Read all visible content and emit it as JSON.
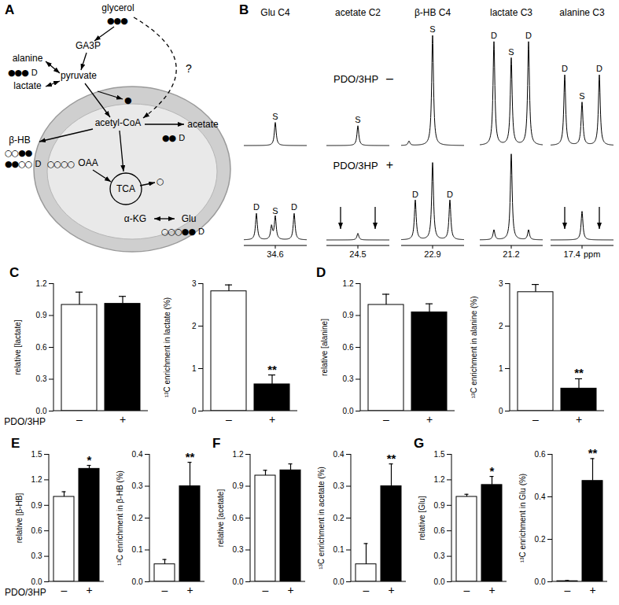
{
  "diagram": {
    "panel": "A",
    "nodes": [
      "glycerol",
      "GA3P",
      "pyruvate",
      "alanine",
      "lactate",
      "acetyl-CoA",
      "acetate",
      "β-HB",
      "OAA",
      "TCA",
      "α-KG",
      "Glu"
    ],
    "unknown_route": "?",
    "isotopomers": [
      {
        "circles": "●●●"
      },
      {
        "circles": "●●●",
        "label": "D"
      },
      {
        "circles": "●"
      },
      {
        "circles": "●●",
        "label": "D"
      },
      {
        "circles": "○○●●"
      },
      {
        "circles": "●●○○",
        "label": "D"
      },
      {
        "circles": "○○○○"
      },
      {
        "circles": "○"
      },
      {
        "circles": "○○○●●",
        "label": "D"
      }
    ]
  },
  "spectra": {
    "panel": "B",
    "condition": "PDO/3HP",
    "unit": "ppm",
    "compounds": [
      {
        "name": "Glu C4",
        "ppm": "34.6"
      },
      {
        "name": "acetate C2",
        "ppm": "24.5"
      },
      {
        "name": "β-HB C4",
        "ppm": "22.9"
      },
      {
        "name": "lactate C3",
        "ppm": "21.2"
      },
      {
        "name": "alanine C3",
        "ppm": "17.4"
      }
    ],
    "rows": [
      {
        "sign": "–",
        "segments": [
          {
            "peaks": [
              {
                "offset": 0,
                "height": 0.21,
                "label": "S"
              }
            ],
            "arrows": []
          },
          {
            "peaks": [
              {
                "offset": 0,
                "height": 0.18,
                "label": "S"
              }
            ],
            "arrows": []
          },
          {
            "peaks": [
              {
                "offset": -0.75,
                "height": 0.04
              },
              {
                "offset": 0,
                "height": 1.0,
                "label": "S"
              }
            ],
            "arrows": []
          },
          {
            "peaks": [
              {
                "offset": -0.55,
                "height": 0.94,
                "label": "D"
              },
              {
                "offset": 0,
                "height": 0.79,
                "label": "S"
              },
              {
                "offset": 0.55,
                "height": 0.94,
                "label": "D"
              }
            ],
            "arrows": []
          },
          {
            "peaks": [
              {
                "offset": -0.55,
                "height": 0.64,
                "label": "D"
              },
              {
                "offset": 0,
                "height": 0.39,
                "label": "S"
              },
              {
                "offset": 0.55,
                "height": 0.64,
                "label": "D"
              }
            ],
            "arrows": []
          }
        ]
      },
      {
        "sign": "+",
        "segments": [
          {
            "peaks": [
              {
                "offset": -0.6,
                "height": 0.24,
                "label": "D"
              },
              {
                "offset": -0.12,
                "height": 0.12
              },
              {
                "offset": 0,
                "height": 0.21,
                "label": "S"
              },
              {
                "offset": 0.6,
                "height": 0.24,
                "label": "D"
              }
            ],
            "arrows": []
          },
          {
            "peaks": [
              {
                "offset": 0,
                "height": 0.06
              }
            ],
            "arrows": [
              -0.55,
              0.55
            ]
          },
          {
            "peaks": [
              {
                "offset": -0.55,
                "height": 0.36,
                "label": "D"
              },
              {
                "offset": 0,
                "height": 0.7
              },
              {
                "offset": 0.55,
                "height": 0.36,
                "label": "D"
              }
            ],
            "arrows": []
          },
          {
            "peaks": [
              {
                "offset": -0.55,
                "height": 0.09
              },
              {
                "offset": 0,
                "height": 0.78
              },
              {
                "offset": 0.55,
                "height": 0.09
              }
            ],
            "arrows": []
          },
          {
            "peaks": [
              {
                "offset": 0,
                "height": 0.26
              }
            ],
            "arrows": [
              -0.55,
              0.55
            ]
          }
        ]
      }
    ]
  },
  "chart_data": [
    {
      "type": "bar",
      "title": "C",
      "categories": [
        "–",
        "+"
      ],
      "values": [
        1.0,
        1.01
      ],
      "errors": [
        0.12,
        0.07
      ],
      "colors": [
        "#ffffff",
        "#000000"
      ],
      "ylabel": "relative [lactate]",
      "xlabel": "PDO/3HP",
      "ylim": [
        0,
        1.2
      ],
      "yticks": [
        {
          "value": 0,
          "label": "0.0"
        },
        0.3,
        0.6,
        0.9,
        1.2
      ]
    },
    {
      "type": "bar",
      "categories": [
        "–",
        "+"
      ],
      "values": [
        2.82,
        0.63
      ],
      "errors": [
        0.15,
        0.22
      ],
      "colors": [
        "#ffffff",
        "#000000"
      ],
      "ylabel": "¹³C enrichment in lactate (%)",
      "ylim": [
        0,
        3
      ],
      "yticks": [
        0,
        1,
        2,
        3
      ],
      "annotations": [
        {
          "category": "+",
          "text": "**"
        }
      ]
    },
    {
      "type": "bar",
      "title": "D",
      "categories": [
        "–",
        "+"
      ],
      "values": [
        1.0,
        0.93
      ],
      "errors": [
        0.1,
        0.08
      ],
      "colors": [
        "#ffffff",
        "#000000"
      ],
      "ylabel": "relative [alanine]",
      "ylim": [
        0,
        1.2
      ],
      "yticks": [
        {
          "value": 0,
          "label": "0.0"
        },
        0.3,
        0.6,
        0.9,
        1.2
      ]
    },
    {
      "type": "bar",
      "categories": [
        "–",
        "+"
      ],
      "values": [
        2.8,
        0.53
      ],
      "errors": [
        0.18,
        0.23
      ],
      "colors": [
        "#ffffff",
        "#000000"
      ],
      "ylabel": "¹³C enrichment in alanine (%)",
      "ylim": [
        0,
        3
      ],
      "yticks": [
        0,
        1,
        2,
        3
      ],
      "annotations": [
        {
          "category": "+",
          "text": "**"
        }
      ]
    },
    {
      "type": "bar",
      "title": "E",
      "categories": [
        "–",
        "+"
      ],
      "values": [
        1.0,
        1.33
      ],
      "errors": [
        0.06,
        0.04
      ],
      "colors": [
        "#ffffff",
        "#000000"
      ],
      "ylabel": "relative [β-HB]",
      "xlabel": "PDO/3HP",
      "ylim": [
        0,
        1.5
      ],
      "yticks": [
        {
          "value": 0,
          "label": "0.0"
        },
        0.3,
        0.6,
        0.9,
        1.2,
        1.5
      ],
      "annotations": [
        {
          "category": "+",
          "text": "*"
        }
      ]
    },
    {
      "type": "bar",
      "categories": [
        "–",
        "+"
      ],
      "values": [
        0.055,
        0.3
      ],
      "errors": [
        0.015,
        0.075
      ],
      "colors": [
        "#ffffff",
        "#000000"
      ],
      "ylabel": "¹³C enrichment in β-HB (%)",
      "ylim": [
        0,
        0.4
      ],
      "yticks": [
        {
          "value": 0,
          "label": "0.0"
        },
        0.1,
        0.2,
        0.3,
        0.4
      ],
      "annotations": [
        {
          "category": "+",
          "text": "**"
        }
      ]
    },
    {
      "type": "bar",
      "title": "F",
      "categories": [
        "–",
        "+"
      ],
      "values": [
        1.0,
        1.05
      ],
      "errors": [
        0.05,
        0.06
      ],
      "colors": [
        "#ffffff",
        "#000000"
      ],
      "ylabel": "relative [acetate]",
      "ylim": [
        0,
        1.2
      ],
      "yticks": [
        {
          "value": 0,
          "label": "0.0"
        },
        0.3,
        0.6,
        0.9,
        1.2
      ]
    },
    {
      "type": "bar",
      "categories": [
        "–",
        "+"
      ],
      "values": [
        0.055,
        0.3
      ],
      "errors": [
        0.065,
        0.07
      ],
      "colors": [
        "#ffffff",
        "#000000"
      ],
      "ylabel": "¹³C enrichment in acetate (%)",
      "ylim": [
        0,
        0.4
      ],
      "yticks": [
        {
          "value": 0,
          "label": "0.0"
        },
        0.1,
        0.2,
        0.3,
        0.4
      ],
      "annotations": [
        {
          "category": "+",
          "text": "**"
        }
      ]
    },
    {
      "type": "bar",
      "title": "G",
      "categories": [
        "–",
        "+"
      ],
      "values": [
        1.0,
        1.14
      ],
      "errors": [
        0.03,
        0.1
      ],
      "colors": [
        "#ffffff",
        "#000000"
      ],
      "ylabel": "relative [Glu]",
      "ylim": [
        0,
        1.5
      ],
      "yticks": [
        {
          "value": 0,
          "label": "0.0"
        },
        0.3,
        0.6,
        0.9,
        1.2,
        1.5
      ],
      "annotations": [
        {
          "category": "+",
          "text": "*"
        }
      ]
    },
    {
      "type": "bar",
      "categories": [
        "–",
        "+"
      ],
      "values": [
        0.003,
        0.475
      ],
      "errors": [
        0.003,
        0.105
      ],
      "colors": [
        "#ffffff",
        "#000000"
      ],
      "ylabel": "¹³C enrichment in Glu (%)",
      "ylim": [
        0,
        0.6
      ],
      "yticks": [
        {
          "value": 0,
          "label": "0.0"
        },
        0.2,
        0.4,
        0.6
      ],
      "annotations": [
        {
          "category": "+",
          "text": "**"
        }
      ]
    }
  ]
}
